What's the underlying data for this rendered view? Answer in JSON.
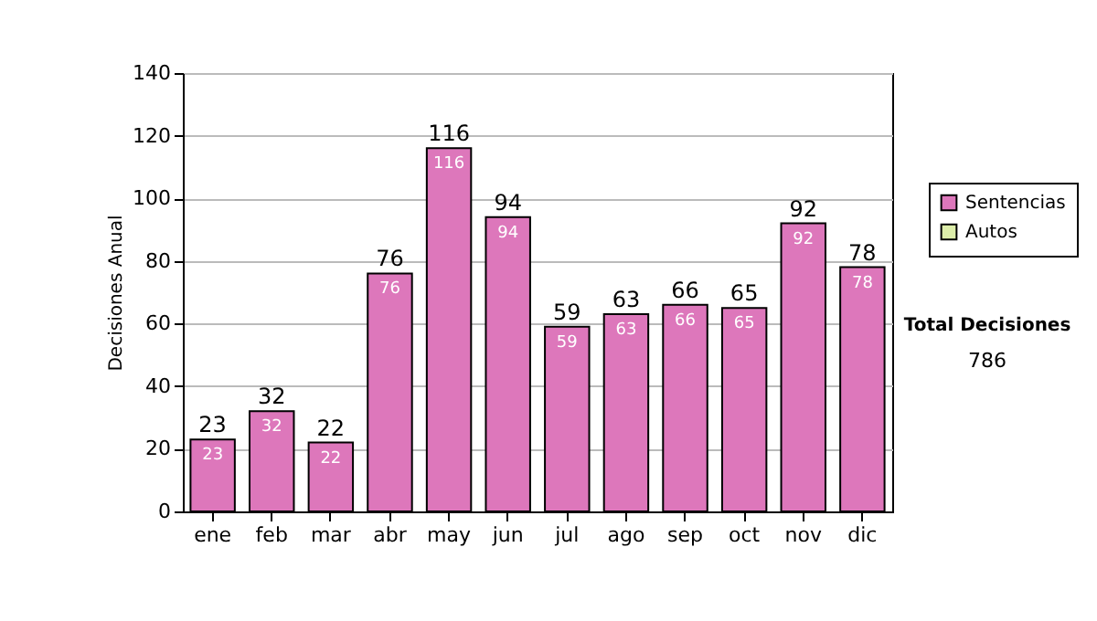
{
  "chart_data": {
    "type": "bar",
    "ylabel": "Decisiones Anual",
    "categories": [
      "ene",
      "feb",
      "mar",
      "abr",
      "may",
      "jun",
      "jul",
      "ago",
      "sep",
      "oct",
      "nov",
      "dic"
    ],
    "series": [
      {
        "name": "Sentencias",
        "color": "#dd77bb",
        "values": [
          23,
          32,
          22,
          76,
          116,
          94,
          59,
          63,
          66,
          65,
          92,
          78
        ]
      },
      {
        "name": "Autos",
        "color": "#ddeeaa",
        "values": [
          null,
          null,
          null,
          null,
          null,
          null,
          null,
          null,
          null,
          null,
          null,
          null
        ]
      }
    ],
    "totals": [
      "23",
      "32",
      "22",
      "76",
      "116",
      "94",
      "59",
      "63",
      "66",
      "65",
      "92",
      "78"
    ],
    "data_labels": true,
    "ylim": [
      0,
      140
    ],
    "yticks": [
      0,
      20,
      40,
      60,
      80,
      100,
      120,
      140
    ],
    "grid": "y",
    "legend": "right",
    "annotations": [
      "Total Decisiones",
      "786"
    ]
  }
}
